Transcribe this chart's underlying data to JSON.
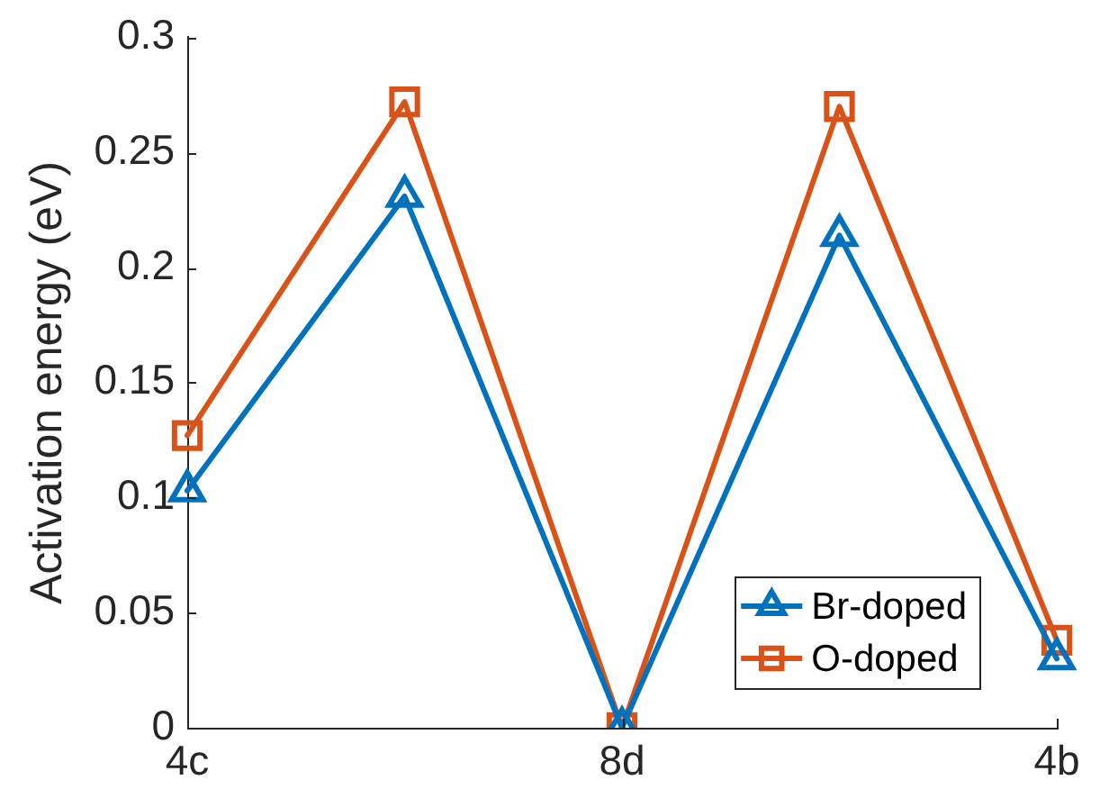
{
  "chart_data": {
    "type": "line",
    "ylabel": "Activation energy (eV)",
    "categories": [
      "4c",
      null,
      "8d",
      null,
      "4b"
    ],
    "series": [
      {
        "name": "Br-doped",
        "color": "#0072bd",
        "marker": "triangle",
        "values": [
          0.103,
          0.231,
          0,
          0.214,
          0.03
        ]
      },
      {
        "name": "O-doped",
        "color": "#d95319",
        "marker": "square",
        "values": [
          0.127,
          0.272,
          0,
          0.27,
          0.038
        ]
      }
    ],
    "ylim": [
      0,
      0.3
    ],
    "yticks": [
      0,
      0.05,
      0.1,
      0.15,
      0.2,
      0.25,
      0.3
    ],
    "legend": "bottom right",
    "line_style": "solid"
  }
}
